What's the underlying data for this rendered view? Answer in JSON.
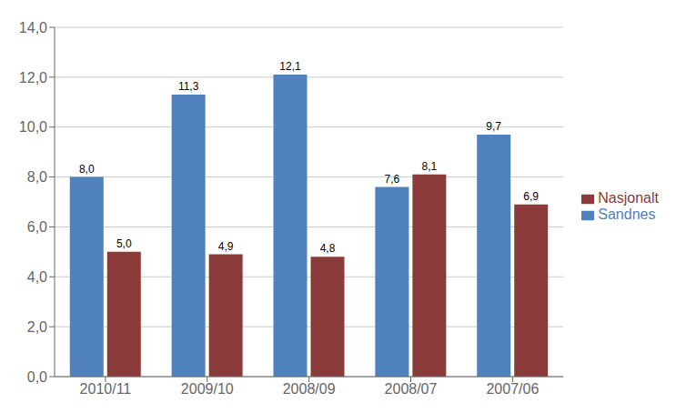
{
  "chart_data": {
    "type": "bar",
    "categories": [
      "2010/11",
      "2009/10",
      "2008/09",
      "2008/07",
      "2007/06"
    ],
    "series": [
      {
        "name": "Sandnes",
        "color": "#4f81bd",
        "values": [
          8.0,
          11.3,
          12.1,
          7.6,
          9.7
        ],
        "value_labels": [
          "8,0",
          "11,3",
          "12,1",
          "7,6",
          "9,7"
        ]
      },
      {
        "name": "Nasjonalt",
        "color": "#8b3a3a",
        "values": [
          5.0,
          4.9,
          4.8,
          8.1,
          6.9
        ],
        "value_labels": [
          "5,0",
          "4,9",
          "4,8",
          "8,1",
          "6,9"
        ]
      }
    ],
    "ylim": [
      0,
      14
    ],
    "yticks": [
      {
        "value": 0,
        "label": "0,0"
      },
      {
        "value": 2,
        "label": "2,0"
      },
      {
        "value": 4,
        "label": "4,0"
      },
      {
        "value": 6,
        "label": "6,0"
      },
      {
        "value": 8,
        "label": "8,0"
      },
      {
        "value": 10,
        "label": "10,0"
      },
      {
        "value": 12,
        "label": "12,0"
      },
      {
        "value": 14,
        "label": "14,0"
      }
    ],
    "grid": true,
    "legend": "right",
    "data_labels": true
  }
}
